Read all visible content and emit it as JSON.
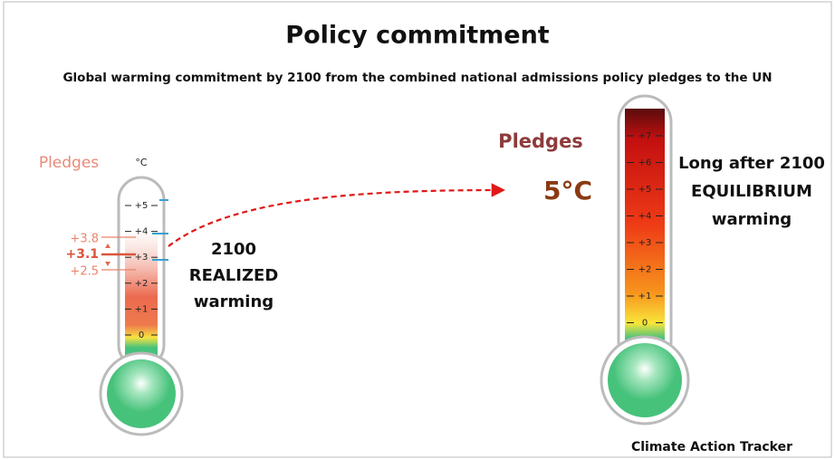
{
  "header": {
    "title": "Policy commitment",
    "subtitle": "Global warming commitment by 2100 from the combined national admissions policy pledges to the UN"
  },
  "left_thermometer": {
    "label": "Pledges",
    "unit": "°C",
    "scale": [
      "+5",
      "+4",
      "+3",
      "+2",
      "+1",
      "0"
    ],
    "markers": [
      "+3.8",
      "+3.1",
      "+2.5"
    ],
    "caption": [
      "2100",
      "REALIZED",
      "warming"
    ]
  },
  "right_thermometer": {
    "label": "Pledges",
    "value": "5°C",
    "scale": [
      "+7",
      "+6",
      "+5",
      "+4",
      "+3",
      "+2",
      "+1",
      "0"
    ],
    "caption": [
      "Long after 2100",
      "EQUILIBRIUM",
      "warming"
    ]
  },
  "footer": {
    "source": "Climate Action Tracker"
  }
}
